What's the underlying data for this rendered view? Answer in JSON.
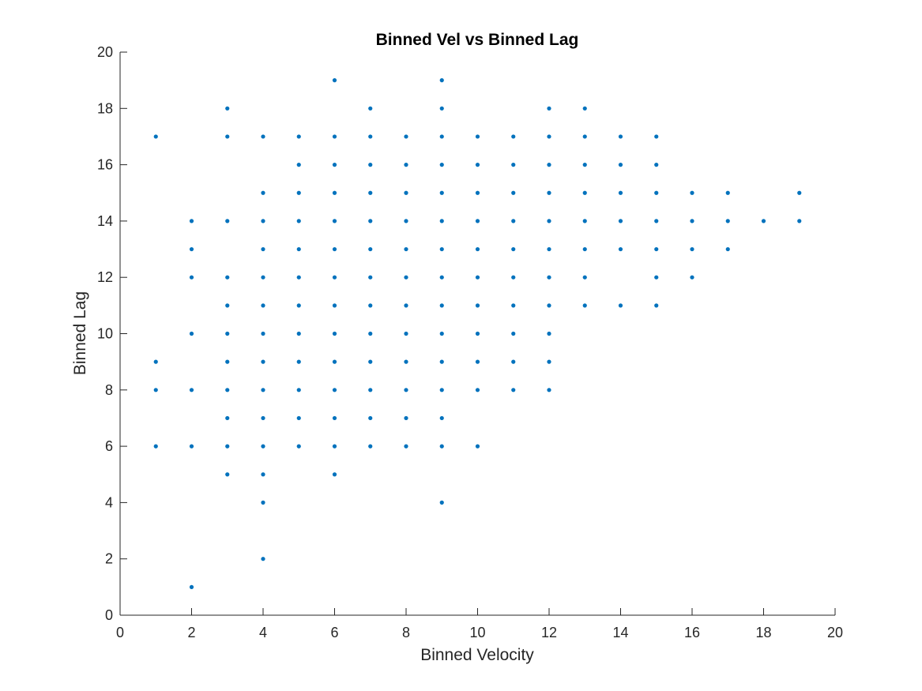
{
  "chart_data": {
    "type": "scatter",
    "title": "Binned Vel vs Binned Lag",
    "xlabel": "Binned Velocity",
    "ylabel": "Binned Lag",
    "xlim": [
      0,
      20
    ],
    "ylim": [
      0,
      20
    ],
    "xticks": [
      0,
      2,
      4,
      6,
      8,
      10,
      12,
      14,
      16,
      18,
      20
    ],
    "yticks": [
      0,
      2,
      4,
      6,
      8,
      10,
      12,
      14,
      16,
      18,
      20
    ],
    "grid": false,
    "marker_color": "#0072BD",
    "series": [
      {
        "points": [
          [
            1,
            17
          ],
          [
            1,
            9
          ],
          [
            1,
            8
          ],
          [
            1,
            6
          ],
          [
            2,
            14
          ],
          [
            2,
            13
          ],
          [
            2,
            12
          ],
          [
            2,
            10
          ],
          [
            2,
            8
          ],
          [
            2,
            6
          ],
          [
            2,
            1
          ],
          [
            3,
            18
          ],
          [
            3,
            17
          ],
          [
            3,
            14
          ],
          [
            3,
            12
          ],
          [
            3,
            11
          ],
          [
            3,
            10
          ],
          [
            3,
            9
          ],
          [
            3,
            8
          ],
          [
            3,
            7
          ],
          [
            3,
            6
          ],
          [
            3,
            5
          ],
          [
            4,
            17
          ],
          [
            4,
            15
          ],
          [
            4,
            14
          ],
          [
            4,
            13
          ],
          [
            4,
            12
          ],
          [
            4,
            11
          ],
          [
            4,
            10
          ],
          [
            4,
            9
          ],
          [
            4,
            8
          ],
          [
            4,
            7
          ],
          [
            4,
            6
          ],
          [
            4,
            5
          ],
          [
            4,
            4
          ],
          [
            4,
            2
          ],
          [
            5,
            17
          ],
          [
            5,
            16
          ],
          [
            5,
            15
          ],
          [
            5,
            14
          ],
          [
            5,
            13
          ],
          [
            5,
            12
          ],
          [
            5,
            11
          ],
          [
            5,
            10
          ],
          [
            5,
            9
          ],
          [
            5,
            8
          ],
          [
            5,
            7
          ],
          [
            5,
            6
          ],
          [
            6,
            19
          ],
          [
            6,
            17
          ],
          [
            6,
            16
          ],
          [
            6,
            15
          ],
          [
            6,
            14
          ],
          [
            6,
            13
          ],
          [
            6,
            12
          ],
          [
            6,
            11
          ],
          [
            6,
            10
          ],
          [
            6,
            9
          ],
          [
            6,
            8
          ],
          [
            6,
            7
          ],
          [
            6,
            6
          ],
          [
            6,
            5
          ],
          [
            7,
            18
          ],
          [
            7,
            17
          ],
          [
            7,
            16
          ],
          [
            7,
            15
          ],
          [
            7,
            14
          ],
          [
            7,
            13
          ],
          [
            7,
            12
          ],
          [
            7,
            11
          ],
          [
            7,
            10
          ],
          [
            7,
            9
          ],
          [
            7,
            8
          ],
          [
            7,
            7
          ],
          [
            7,
            6
          ],
          [
            8,
            17
          ],
          [
            8,
            16
          ],
          [
            8,
            15
          ],
          [
            8,
            14
          ],
          [
            8,
            13
          ],
          [
            8,
            12
          ],
          [
            8,
            11
          ],
          [
            8,
            10
          ],
          [
            8,
            9
          ],
          [
            8,
            8
          ],
          [
            8,
            7
          ],
          [
            8,
            6
          ],
          [
            9,
            19
          ],
          [
            9,
            18
          ],
          [
            9,
            17
          ],
          [
            9,
            16
          ],
          [
            9,
            15
          ],
          [
            9,
            14
          ],
          [
            9,
            13
          ],
          [
            9,
            12
          ],
          [
            9,
            11
          ],
          [
            9,
            10
          ],
          [
            9,
            9
          ],
          [
            9,
            8
          ],
          [
            9,
            7
          ],
          [
            9,
            6
          ],
          [
            9,
            4
          ],
          [
            10,
            17
          ],
          [
            10,
            16
          ],
          [
            10,
            15
          ],
          [
            10,
            14
          ],
          [
            10,
            13
          ],
          [
            10,
            12
          ],
          [
            10,
            11
          ],
          [
            10,
            10
          ],
          [
            10,
            9
          ],
          [
            10,
            8
          ],
          [
            10,
            6
          ],
          [
            11,
            17
          ],
          [
            11,
            16
          ],
          [
            11,
            15
          ],
          [
            11,
            14
          ],
          [
            11,
            13
          ],
          [
            11,
            12
          ],
          [
            11,
            11
          ],
          [
            11,
            10
          ],
          [
            11,
            9
          ],
          [
            11,
            8
          ],
          [
            12,
            18
          ],
          [
            12,
            17
          ],
          [
            12,
            16
          ],
          [
            12,
            15
          ],
          [
            12,
            14
          ],
          [
            12,
            13
          ],
          [
            12,
            12
          ],
          [
            12,
            11
          ],
          [
            12,
            10
          ],
          [
            12,
            9
          ],
          [
            12,
            8
          ],
          [
            13,
            18
          ],
          [
            13,
            17
          ],
          [
            13,
            16
          ],
          [
            13,
            15
          ],
          [
            13,
            14
          ],
          [
            13,
            13
          ],
          [
            13,
            12
          ],
          [
            13,
            11
          ],
          [
            14,
            17
          ],
          [
            14,
            16
          ],
          [
            14,
            15
          ],
          [
            14,
            14
          ],
          [
            14,
            13
          ],
          [
            14,
            11
          ],
          [
            15,
            17
          ],
          [
            15,
            16
          ],
          [
            15,
            15
          ],
          [
            15,
            14
          ],
          [
            15,
            13
          ],
          [
            15,
            12
          ],
          [
            15,
            11
          ],
          [
            16,
            15
          ],
          [
            16,
            14
          ],
          [
            16,
            13
          ],
          [
            16,
            12
          ],
          [
            17,
            15
          ],
          [
            17,
            14
          ],
          [
            17,
            13
          ],
          [
            18,
            14
          ],
          [
            19,
            15
          ],
          [
            19,
            14
          ]
        ]
      }
    ]
  }
}
